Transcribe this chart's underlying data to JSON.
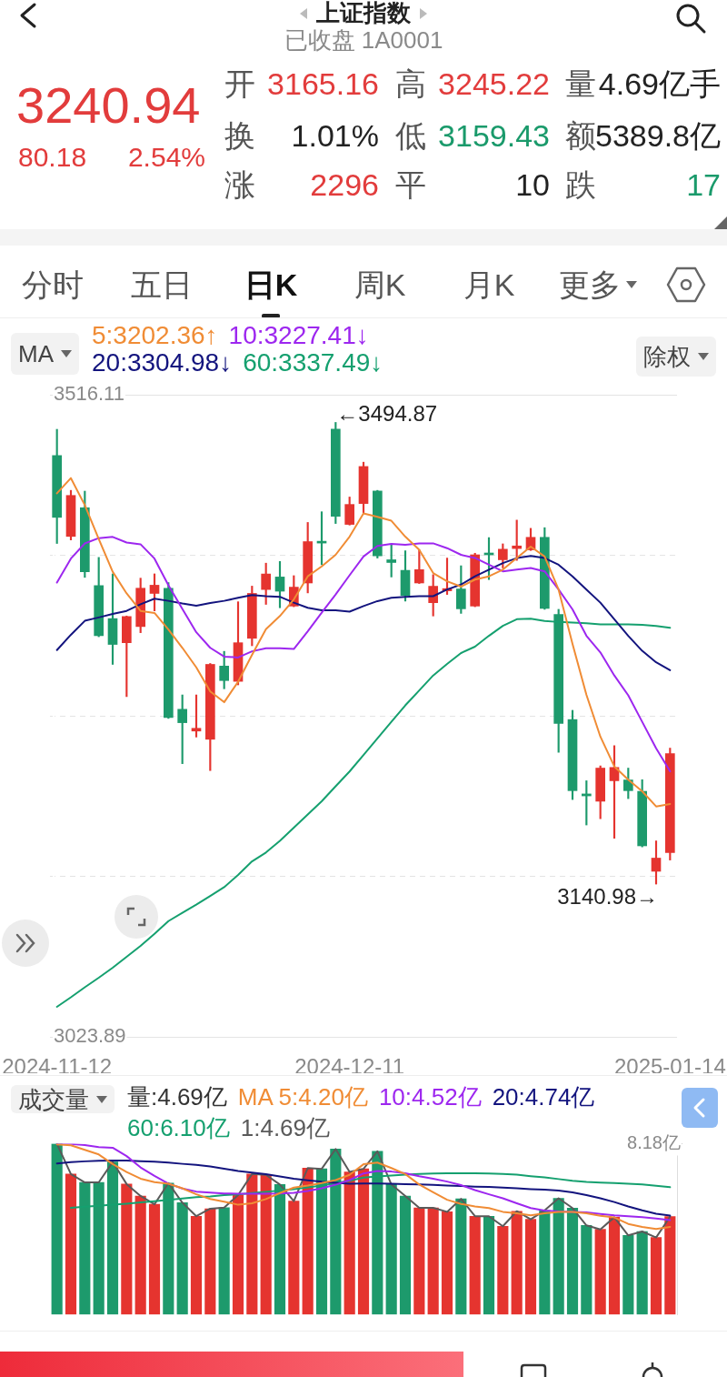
{
  "chart_data": [
    {
      "type": "other",
      "title": "上证指数",
      "subtitle": "已收盘 1A0001",
      "color": "#e23c3c",
      "annotations": [
        "3240.94",
        "80.18",
        "2.54%"
      ],
      "categories": [
        "开",
        "高",
        "量",
        "换",
        "低",
        "额",
        "涨",
        "平",
        "跌"
      ],
      "value_labels": [
        "3165.16",
        "3245.22",
        "4.69亿手",
        "1.01%",
        "3159.43",
        "5389.8亿",
        "2296",
        "10",
        "17"
      ],
      "colors": [
        "#e23c3c",
        "#e23c3c",
        "#222222",
        "#222222",
        "#1a9a6b",
        "#222222",
        "#e23c3c",
        "#222222",
        "#1a9a6b"
      ]
    },
    {
      "type": "other",
      "categories": [
        "分时",
        "五日",
        "日K",
        "周K",
        "月K",
        "更多"
      ]
    },
    {
      "type": "candlestick",
      "legend_title": "MA",
      "legend": "top left",
      "grid": "y",
      "categories": [
        "2024-11-12",
        null,
        null,
        null,
        null,
        null,
        null,
        null,
        null,
        null,
        null,
        null,
        null,
        null,
        null,
        null,
        null,
        null,
        null,
        null,
        null,
        "2024-12-11",
        null,
        null,
        null,
        null,
        null,
        null,
        null,
        null,
        null,
        null,
        null,
        null,
        null,
        null,
        null,
        null,
        null,
        null,
        null,
        null,
        null,
        null,
        "2025-01-14"
      ],
      "ohlc": [
        [
          3469.5,
          3489.6,
          3402.1,
          3422.1
        ],
        [
          3407.5,
          3442.8,
          3404.8,
          3438.9
        ],
        [
          3429.5,
          3442.2,
          3376.1,
          3380.4
        ],
        [
          3369.8,
          3391.4,
          3330.6,
          3331.4
        ],
        [
          3344.5,
          3378.8,
          3309.4,
          3324.7
        ],
        [
          3326.0,
          3346.5,
          3284.7,
          3346.1
        ],
        [
          3338.4,
          3375.5,
          3333.7,
          3367.8
        ],
        [
          3363.8,
          3378.8,
          3350.4,
          3370.1
        ],
        [
          3367.8,
          3372.1,
          3268.0,
          3268.7
        ],
        [
          3275.0,
          3286.0,
          3233.3,
          3264.7
        ],
        [
          3258.3,
          3286.0,
          3253.7,
          3260.4
        ],
        [
          3252.0,
          3310.1,
          3228.0,
          3309.4
        ],
        [
          3308.1,
          3319.4,
          3290.7,
          3297.0
        ],
        [
          3296.4,
          3357.4,
          3293.7,
          3326.0
        ],
        [
          3329.4,
          3369.4,
          3323.7,
          3363.8
        ],
        [
          3366.8,
          3387.0,
          3355.4,
          3378.7
        ],
        [
          3376.4,
          3388.3,
          3352.8,
          3365.5
        ],
        [
          3354.1,
          3377.4,
          3353.6,
          3368.6
        ],
        [
          3371.8,
          3418.2,
          3364.2,
          3403.5
        ],
        [
          3403.0,
          3426.4,
          3385.8,
          3402.4
        ],
        [
          3489.7,
          3494.87,
          3417.4,
          3423.0
        ],
        [
          3416.7,
          3437.7,
          3416.2,
          3432.0
        ],
        [
          3432.7,
          3464.4,
          3425.6,
          3461.1
        ],
        [
          3442.3,
          3442.8,
          3390.9,
          3392.6
        ],
        [
          3389.6,
          3401.8,
          3376.4,
          3387.5
        ],
        [
          3381.5,
          3396.5,
          3357.9,
          3362.2
        ],
        [
          3371.8,
          3397.2,
          3371.4,
          3382.0
        ],
        [
          3356.7,
          3378.2,
          3346.5,
          3369.3
        ],
        [
          3365.8,
          3390.9,
          3363.0,
          3367.5
        ],
        [
          3367.2,
          3385.0,
          3348.5,
          3352.0
        ],
        [
          3354.1,
          3394.6,
          3353.6,
          3393.4
        ],
        [
          3394.6,
          3406.6,
          3374.4,
          3393.4
        ],
        [
          3389.6,
          3401.8,
          3383.3,
          3397.7
        ],
        [
          3398.2,
          3420.0,
          3389.1,
          3400.2
        ],
        [
          3397.2,
          3413.7,
          3396.7,
          3406.8
        ],
        [
          3406.8,
          3414.2,
          3351.6,
          3352.3
        ],
        [
          3347.7,
          3351.6,
          3242.0,
          3264.1
        ],
        [
          3267.1,
          3274.2,
          3205.8,
          3212.6
        ],
        [
          3210.1,
          3220.2,
          3186.3,
          3208.6
        ],
        [
          3204.5,
          3231.6,
          3191.1,
          3229.9
        ],
        [
          3220.2,
          3247.1,
          3176.1,
          3230.4
        ],
        [
          3220.8,
          3229.9,
          3206.5,
          3212.6
        ],
        [
          3212.1,
          3221.0,
          3169.5,
          3170.3
        ],
        [
          3150.8,
          3174.1,
          3140.98,
          3160.9
        ],
        [
          3165.16,
          3245.22,
          3159.43,
          3240.94
        ]
      ],
      "colors": [
        "#1d9a6c",
        "#e5342f",
        "#1d9a6c",
        "#1d9a6c",
        "#1d9a6c",
        "#e5342f",
        "#e5342f",
        "#e5342f",
        "#1d9a6c",
        "#1d9a6c",
        "#e5342f",
        "#e5342f",
        "#1d9a6c",
        "#e5342f",
        "#e5342f",
        "#e5342f",
        "#1d9a6c",
        "#e5342f",
        "#e5342f",
        "#1d9a6c",
        "#1d9a6c",
        "#e5342f",
        "#e5342f",
        "#1d9a6c",
        "#1d9a6c",
        "#1d9a6c",
        "#e5342f",
        "#e5342f",
        "#e5342f",
        "#1d9a6c",
        "#e5342f",
        "#1d9a6c",
        "#e5342f",
        "#e5342f",
        "#e5342f",
        "#1d9a6c",
        "#1d9a6c",
        "#1d9a6c",
        "#1d9a6c",
        "#e5342f",
        "#e5342f",
        "#1d9a6c",
        "#1d9a6c",
        "#e5342f",
        "#e5342f"
      ],
      "series": [
        {
          "name": "5:3202.36↑",
          "type": "line",
          "color": "#f08c35",
          "values": [
            3440.5,
            3452.2,
            3431.5,
            3405.5,
            3380.4,
            3363.8,
            3350.4,
            3348.8,
            3336.1,
            3322.1,
            3307.1,
            3288.7,
            3280.4,
            3296.1,
            3316.7,
            3336.4,
            3346.5,
            3359.2,
            3376.9,
            3384.5,
            3393.4,
            3407.3,
            3425.1,
            3422.5,
            3419.5,
            3407.3,
            3397.2,
            3379.4,
            3373.1,
            3369.0,
            3374.4,
            3376.9,
            3382.0,
            3390.9,
            3399.7,
            3392.1,
            3366.8,
            3325.0,
            3286.0,
            3254.0,
            3231.2,
            3221.0,
            3212.1,
            3200.5,
            3202.36
          ]
        },
        {
          "name": "10:3227.41↓",
          "type": "line",
          "color": "#9d27ef",
          "values": [
            3372.1,
            3390.5,
            3402.1,
            3406.2,
            3407.1,
            3402.8,
            3401.5,
            3390.5,
            3370.0,
            3352.0,
            3334.0,
            3322.1,
            3315.4,
            3314.7,
            3319.4,
            3321.7,
            3321.7,
            3321.2,
            3334.8,
            3349.1,
            3363.0,
            3377.7,
            3392.1,
            3400.2,
            3401.8,
            3401.0,
            3402.2,
            3402.2,
            3398.5,
            3393.4,
            3391.0,
            3385.8,
            3380.7,
            3382.0,
            3383.3,
            3380.7,
            3366.8,
            3351.6,
            3331.3,
            3318.6,
            3300.9,
            3285.7,
            3265.4,
            3245.1,
            3227.41
          ]
        },
        {
          "name": "20:3304.98↓",
          "type": "line",
          "color": "#13147e",
          "values": [
            3320.4,
            3332.1,
            3342.8,
            3345.4,
            3348.1,
            3350.4,
            3355.5,
            3359.8,
            3358.1,
            3356.1,
            3354.4,
            3356.4,
            3358.1,
            3360.4,
            3362.5,
            3361.7,
            3361.2,
            3356.7,
            3352.8,
            3350.8,
            3350.8,
            3349.8,
            3354.1,
            3357.9,
            3360.4,
            3361.2,
            3361.7,
            3361.7,
            3366.8,
            3370.6,
            3376.9,
            3382.0,
            3387.0,
            3390.9,
            3392.6,
            3390.9,
            3385.8,
            3376.9,
            3366.8,
            3356.7,
            3344.0,
            3331.3,
            3319.8,
            3311.0,
            3304.98
          ]
        },
        {
          "name": "60:3337.49↓",
          "type": "line",
          "color": "#15a06f",
          "values": [
            3046.9,
            3054.2,
            3061.9,
            3069.2,
            3076.9,
            3085.2,
            3093.6,
            3102.9,
            3112.6,
            3118.9,
            3125.2,
            3131.9,
            3138.6,
            3148.0,
            3158.4,
            3165.2,
            3174.1,
            3184.2,
            3194.3,
            3204.5,
            3216.0,
            3227.3,
            3240.0,
            3252.7,
            3265.4,
            3278.0,
            3289.4,
            3300.9,
            3309.7,
            3318.1,
            3323.0,
            3331.3,
            3338.9,
            3344.0,
            3344.5,
            3342.7,
            3341.9,
            3341.4,
            3340.9,
            3340.1,
            3340.1,
            3340.0,
            3339.7,
            3338.9,
            3337.49
          ]
        }
      ],
      "ylim": [
        3023.89,
        3516.11
      ],
      "yticks": [
        3023.89,
        {
          "value": 3146.95,
          "label": null
        },
        {
          "value": 3270,
          "label": null
        },
        {
          "value": 3393.05,
          "label": null
        },
        3516.11
      ],
      "annotations": [
        "←3494.87",
        "3140.98→",
        "除权"
      ]
    },
    {
      "type": "bar",
      "legend_title": "成交量",
      "legend": "top left",
      "categories": [
        null,
        null,
        null,
        null,
        null,
        null,
        null,
        null,
        null,
        null,
        null,
        null,
        null,
        null,
        null,
        null,
        null,
        null,
        null,
        null,
        null,
        null,
        null,
        null,
        null,
        null,
        null,
        null,
        null,
        null,
        null,
        null,
        null,
        null,
        null,
        null,
        null,
        null,
        null,
        null,
        null,
        null,
        null,
        null,
        null
      ],
      "series": [
        {
          "type": "bar",
          "colors": [
            "#1d9a6c",
            "#e5342f",
            "#1d9a6c",
            "#1d9a6c",
            "#1d9a6c",
            "#e5342f",
            "#e5342f",
            "#e5342f",
            "#1d9a6c",
            "#1d9a6c",
            "#e5342f",
            "#e5342f",
            "#1d9a6c",
            "#e5342f",
            "#e5342f",
            "#e5342f",
            "#1d9a6c",
            "#e5342f",
            "#e5342f",
            "#1d9a6c",
            "#1d9a6c",
            "#e5342f",
            "#e5342f",
            "#1d9a6c",
            "#1d9a6c",
            "#1d9a6c",
            "#e5342f",
            "#e5342f",
            "#e5342f",
            "#1d9a6c",
            "#e5342f",
            "#1d9a6c",
            "#e5342f",
            "#e5342f",
            "#e5342f",
            "#1d9a6c",
            "#1d9a6c",
            "#1d9a6c",
            "#1d9a6c",
            "#e5342f",
            "#e5342f",
            "#1d9a6c",
            "#1d9a6c",
            "#e5342f",
            "#e5342f"
          ],
          "values": [
            8.18,
            6.73,
            6.33,
            6.33,
            7.31,
            6.25,
            5.68,
            5.28,
            6.3,
            5.36,
            4.71,
            5.07,
            5.12,
            5.72,
            6.73,
            6.69,
            6.23,
            5.43,
            7.02,
            6.98,
            7.93,
            6.83,
            6.98,
            7.82,
            6.23,
            5.68,
            5.11,
            5.11,
            4.92,
            5.54,
            4.71,
            4.71,
            4.23,
            4.95,
            4.56,
            4.99,
            5.57,
            5.1,
            4.27,
            4.08,
            4.66,
            3.79,
            3.98,
            3.69,
            4.69
          ]
        },
        {
          "name": "MA 5:4.20亿",
          "type": "line",
          "color": "#f08c35",
          "values": [
            8.15,
            8.11,
            7.89,
            7.67,
            7.21,
            6.83,
            6.51,
            6.34,
            6.27,
            6.05,
            5.76,
            5.54,
            5.41,
            5.26,
            5.33,
            5.53,
            5.82,
            6.08,
            6.18,
            6.3,
            6.44,
            6.69,
            7.2,
            7.28,
            7.02,
            6.73,
            6.23,
            5.86,
            5.5,
            5.3,
            5.18,
            5.1,
            4.92,
            4.85,
            4.75,
            4.85,
            4.92,
            4.92,
            4.85,
            4.73,
            4.65,
            4.34,
            4.2,
            4.1,
            4.2
          ]
        },
        {
          "name": "10:4.52亿",
          "type": "line",
          "color": "#9d27ef",
          "values": [
            8.18,
            8.17,
            8.12,
            8.02,
            7.99,
            7.59,
            7.05,
            6.64,
            6.27,
            6.04,
            5.89,
            5.84,
            5.8,
            5.79,
            5.79,
            5.79,
            5.8,
            5.83,
            5.92,
            6.05,
            6.22,
            6.44,
            6.76,
            6.88,
            6.85,
            6.77,
            6.63,
            6.51,
            6.37,
            6.2,
            5.96,
            5.76,
            5.57,
            5.33,
            5.1,
            4.98,
            4.94,
            4.92,
            4.89,
            4.82,
            4.75,
            4.71,
            4.66,
            4.6,
            4.52
          ]
        },
        {
          "name": "20:4.74亿",
          "type": "line",
          "color": "#13147e",
          "values": [
            7.24,
            7.3,
            7.34,
            7.37,
            7.38,
            7.38,
            7.35,
            7.32,
            7.28,
            7.22,
            7.17,
            7.09,
            6.99,
            6.88,
            6.8,
            6.72,
            6.62,
            6.51,
            6.43,
            6.36,
            6.31,
            6.27,
            6.28,
            6.28,
            6.27,
            6.25,
            6.23,
            6.21,
            6.18,
            6.16,
            6.13,
            6.11,
            6.08,
            6.05,
            6.01,
            5.98,
            5.94,
            5.85,
            5.72,
            5.57,
            5.39,
            5.18,
            4.99,
            4.83,
            4.74
          ]
        },
        {
          "name": "60:6.10亿",
          "type": "line",
          "color": "#15a06f",
          "values": [
            null,
            5.11,
            5.17,
            5.21,
            5.26,
            5.31,
            5.37,
            5.43,
            5.49,
            5.56,
            5.62,
            5.66,
            5.72,
            5.76,
            5.82,
            5.88,
            5.94,
            6.01,
            6.09,
            6.18,
            6.3,
            6.41,
            6.56,
            6.62,
            6.66,
            6.7,
            6.73,
            6.76,
            6.77,
            6.77,
            6.77,
            6.76,
            6.73,
            6.7,
            6.63,
            6.57,
            6.49,
            6.41,
            6.35,
            6.32,
            6.3,
            6.27,
            6.23,
            6.17,
            6.1
          ]
        },
        {
          "name": "1:4.69亿",
          "type": "line",
          "color": "#5a5a5a",
          "values": [
            8.18,
            6.73,
            6.33,
            6.33,
            7.31,
            6.25,
            5.68,
            5.28,
            6.3,
            5.36,
            4.71,
            5.07,
            5.12,
            5.72,
            6.73,
            6.69,
            6.23,
            5.43,
            7.02,
            6.98,
            7.93,
            6.83,
            6.98,
            7.82,
            6.23,
            5.68,
            5.11,
            5.11,
            4.92,
            5.54,
            4.71,
            4.71,
            4.23,
            4.95,
            4.56,
            4.99,
            5.57,
            5.1,
            4.27,
            4.08,
            4.66,
            3.79,
            3.98,
            3.69,
            4.69
          ]
        }
      ],
      "ylim": [
        0,
        8.18
      ],
      "yticks": [
        {
          "value": 8.18,
          "label": "8.18亿"
        }
      ],
      "annotations": [
        "量:4.69亿"
      ]
    }
  ]
}
